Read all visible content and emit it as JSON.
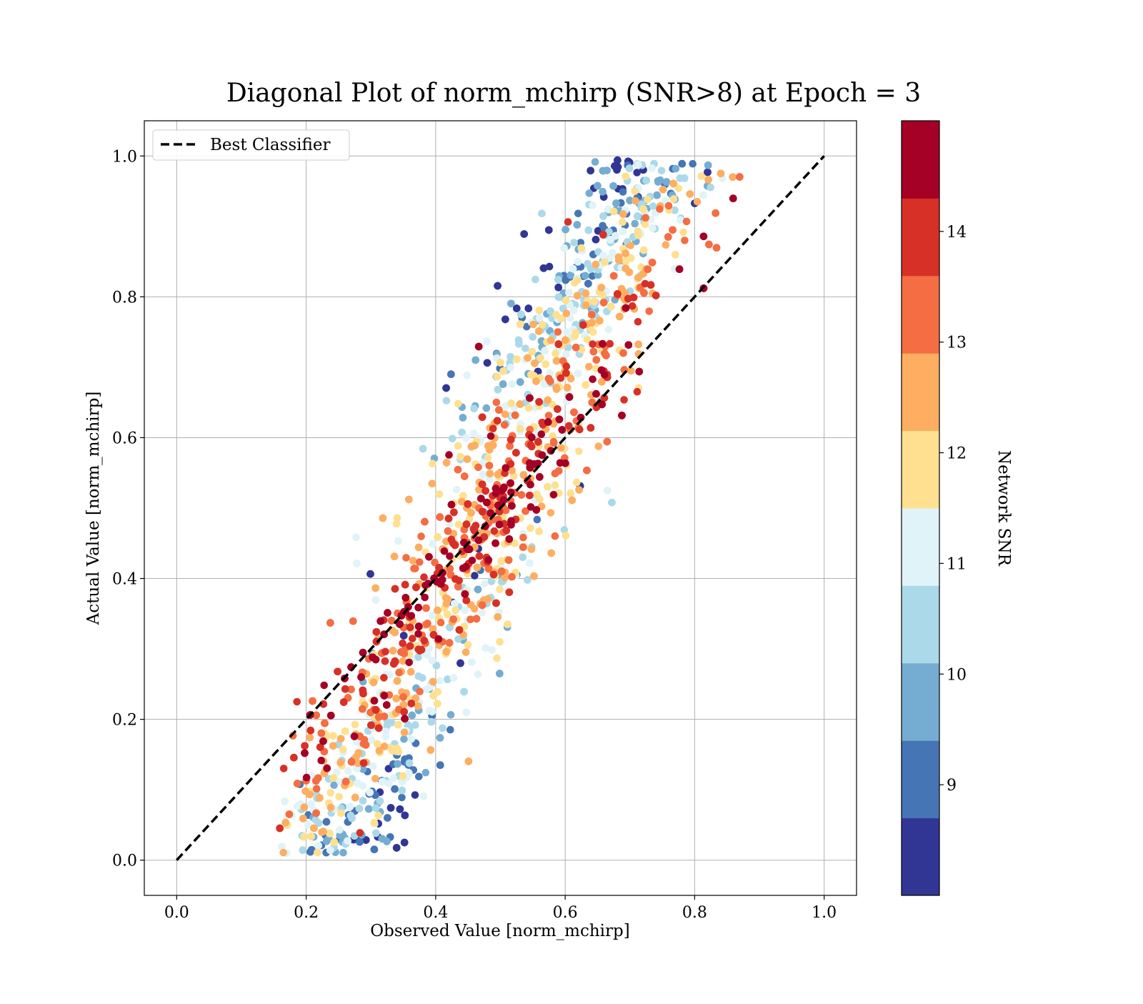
{
  "chart_data": {
    "type": "scatter",
    "title": "Diagonal Plot of norm_mchirp (SNR>8) at Epoch = 3",
    "xlabel": "Observed Value [norm_mchirp]",
    "ylabel": "Actual Value [norm_mchirp]",
    "xlim": [
      -0.05,
      1.05
    ],
    "ylim": [
      -0.05,
      1.05
    ],
    "x_ticks": [
      0.0,
      0.2,
      0.4,
      0.6,
      0.8,
      1.0
    ],
    "x_tick_labels": [
      "0.0",
      "0.2",
      "0.4",
      "0.6",
      "0.8",
      "1.0"
    ],
    "y_ticks": [
      0.0,
      0.2,
      0.4,
      0.6,
      0.8,
      1.0
    ],
    "y_tick_labels": [
      "0.0",
      "0.2",
      "0.4",
      "0.6",
      "0.8",
      "1.0"
    ],
    "grid": true,
    "legend": {
      "placement": "top-left",
      "entries": [
        {
          "label": "Best Classifier",
          "style": "dashed",
          "color": "#000000"
        }
      ]
    },
    "reference_line": {
      "name": "Best Classifier",
      "x": [
        0.0,
        1.0
      ],
      "y": [
        0.0,
        1.0
      ]
    },
    "colorbar": {
      "label": "Network SNR",
      "range": [
        8.0,
        15.0
      ],
      "ticks": [
        9,
        10,
        11,
        12,
        13,
        14
      ],
      "tick_labels": [
        "9",
        "10",
        "11",
        "12",
        "13",
        "14"
      ],
      "colors": [
        "#313695",
        "#4575b4",
        "#74add1",
        "#abd9e9",
        "#e0f3f8",
        "#fee090",
        "#fdae61",
        "#f46d43",
        "#d73027",
        "#a50026"
      ]
    },
    "scatter_cloud": {
      "note_free_description": "dense band of points around diagonal",
      "x_range": [
        0.16,
        0.87
      ],
      "y_range": [
        0.0,
        1.0
      ],
      "band_offsets": [
        -0.22,
        0.22
      ],
      "value_range": [
        8.0,
        15.0
      ]
    }
  }
}
